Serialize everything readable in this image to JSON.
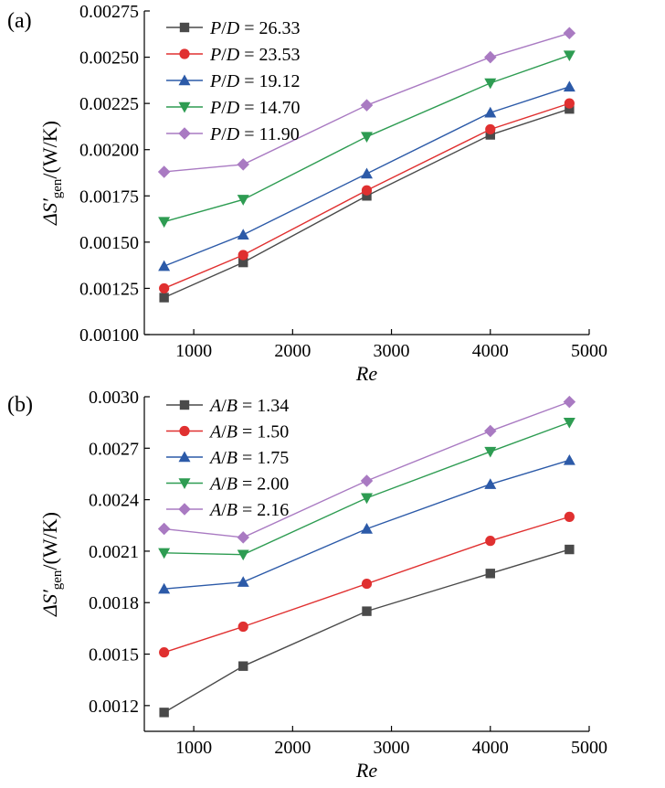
{
  "chart_data": [
    {
      "type": "line",
      "panel_label": "(a)",
      "ylabel_main": "ΔS′",
      "ylabel_sub": "gen",
      "ylabel_unit": "/(W/K)",
      "xlabel": "Re",
      "xlim": [
        500,
        5000
      ],
      "ylim": [
        0.001,
        0.00275
      ],
      "xticks": [
        "1000",
        "2000",
        "3000",
        "4000",
        "5000"
      ],
      "xtick_values": [
        1000,
        2000,
        3000,
        4000,
        5000
      ],
      "yticks": [
        "0.00100",
        "0.00125",
        "0.00150",
        "0.00175",
        "0.00200",
        "0.00225",
        "0.00250",
        "0.00275"
      ],
      "ytick_values": [
        0.001,
        0.00125,
        0.0015,
        0.00175,
        0.002,
        0.00225,
        0.0025,
        0.00275
      ],
      "x": [
        700,
        1500,
        2750,
        4000,
        4800
      ],
      "legend_var": "P/D",
      "series": [
        {
          "name": "26.33",
          "marker": "square",
          "color": "#4a4a4a",
          "values": [
            0.0012,
            0.00139,
            0.00175,
            0.00208,
            0.00222
          ]
        },
        {
          "name": "23.53",
          "marker": "circle",
          "color": "#e03030",
          "values": [
            0.00125,
            0.00143,
            0.00178,
            0.00211,
            0.00225
          ]
        },
        {
          "name": "19.12",
          "marker": "triangle-up",
          "color": "#2c5aa8",
          "values": [
            0.00137,
            0.00154,
            0.00187,
            0.0022,
            0.00234
          ]
        },
        {
          "name": "14.70",
          "marker": "triangle-down",
          "color": "#2e9c52",
          "values": [
            0.00161,
            0.00173,
            0.00207,
            0.00236,
            0.00251
          ]
        },
        {
          "name": "11.90",
          "marker": "diamond",
          "color": "#a97ac2",
          "values": [
            0.00188,
            0.00192,
            0.00224,
            0.0025,
            0.00263
          ]
        }
      ]
    },
    {
      "type": "line",
      "panel_label": "(b)",
      "ylabel_main": "ΔS′",
      "ylabel_sub": "gen",
      "ylabel_unit": "/(W/K)",
      "xlabel": "Re",
      "xlim": [
        500,
        5000
      ],
      "ylim": [
        0.00105,
        0.003
      ],
      "xticks": [
        "1000",
        "2000",
        "3000",
        "4000",
        "5000"
      ],
      "xtick_values": [
        1000,
        2000,
        3000,
        4000,
        5000
      ],
      "yticks": [
        "0.0012",
        "0.0015",
        "0.0018",
        "0.0021",
        "0.0024",
        "0.0027",
        "0.0030"
      ],
      "ytick_values": [
        0.0012,
        0.0015,
        0.0018,
        0.0021,
        0.0024,
        0.0027,
        0.003
      ],
      "x": [
        700,
        1500,
        2750,
        4000,
        4800
      ],
      "legend_var": "A/B",
      "series": [
        {
          "name": "1.34",
          "marker": "square",
          "color": "#4a4a4a",
          "values": [
            0.00116,
            0.00143,
            0.00175,
            0.00197,
            0.00211
          ]
        },
        {
          "name": "1.50",
          "marker": "circle",
          "color": "#e03030",
          "values": [
            0.00151,
            0.00166,
            0.00191,
            0.00216,
            0.0023
          ]
        },
        {
          "name": "1.75",
          "marker": "triangle-up",
          "color": "#2c5aa8",
          "values": [
            0.00188,
            0.00192,
            0.00223,
            0.00249,
            0.00263
          ]
        },
        {
          "name": "2.00",
          "marker": "triangle-down",
          "color": "#2e9c52",
          "values": [
            0.00209,
            0.00208,
            0.00241,
            0.00268,
            0.00285
          ]
        },
        {
          "name": "2.16",
          "marker": "diamond",
          "color": "#a97ac2",
          "values": [
            0.00223,
            0.00218,
            0.00251,
            0.0028,
            0.00297
          ]
        }
      ]
    }
  ]
}
